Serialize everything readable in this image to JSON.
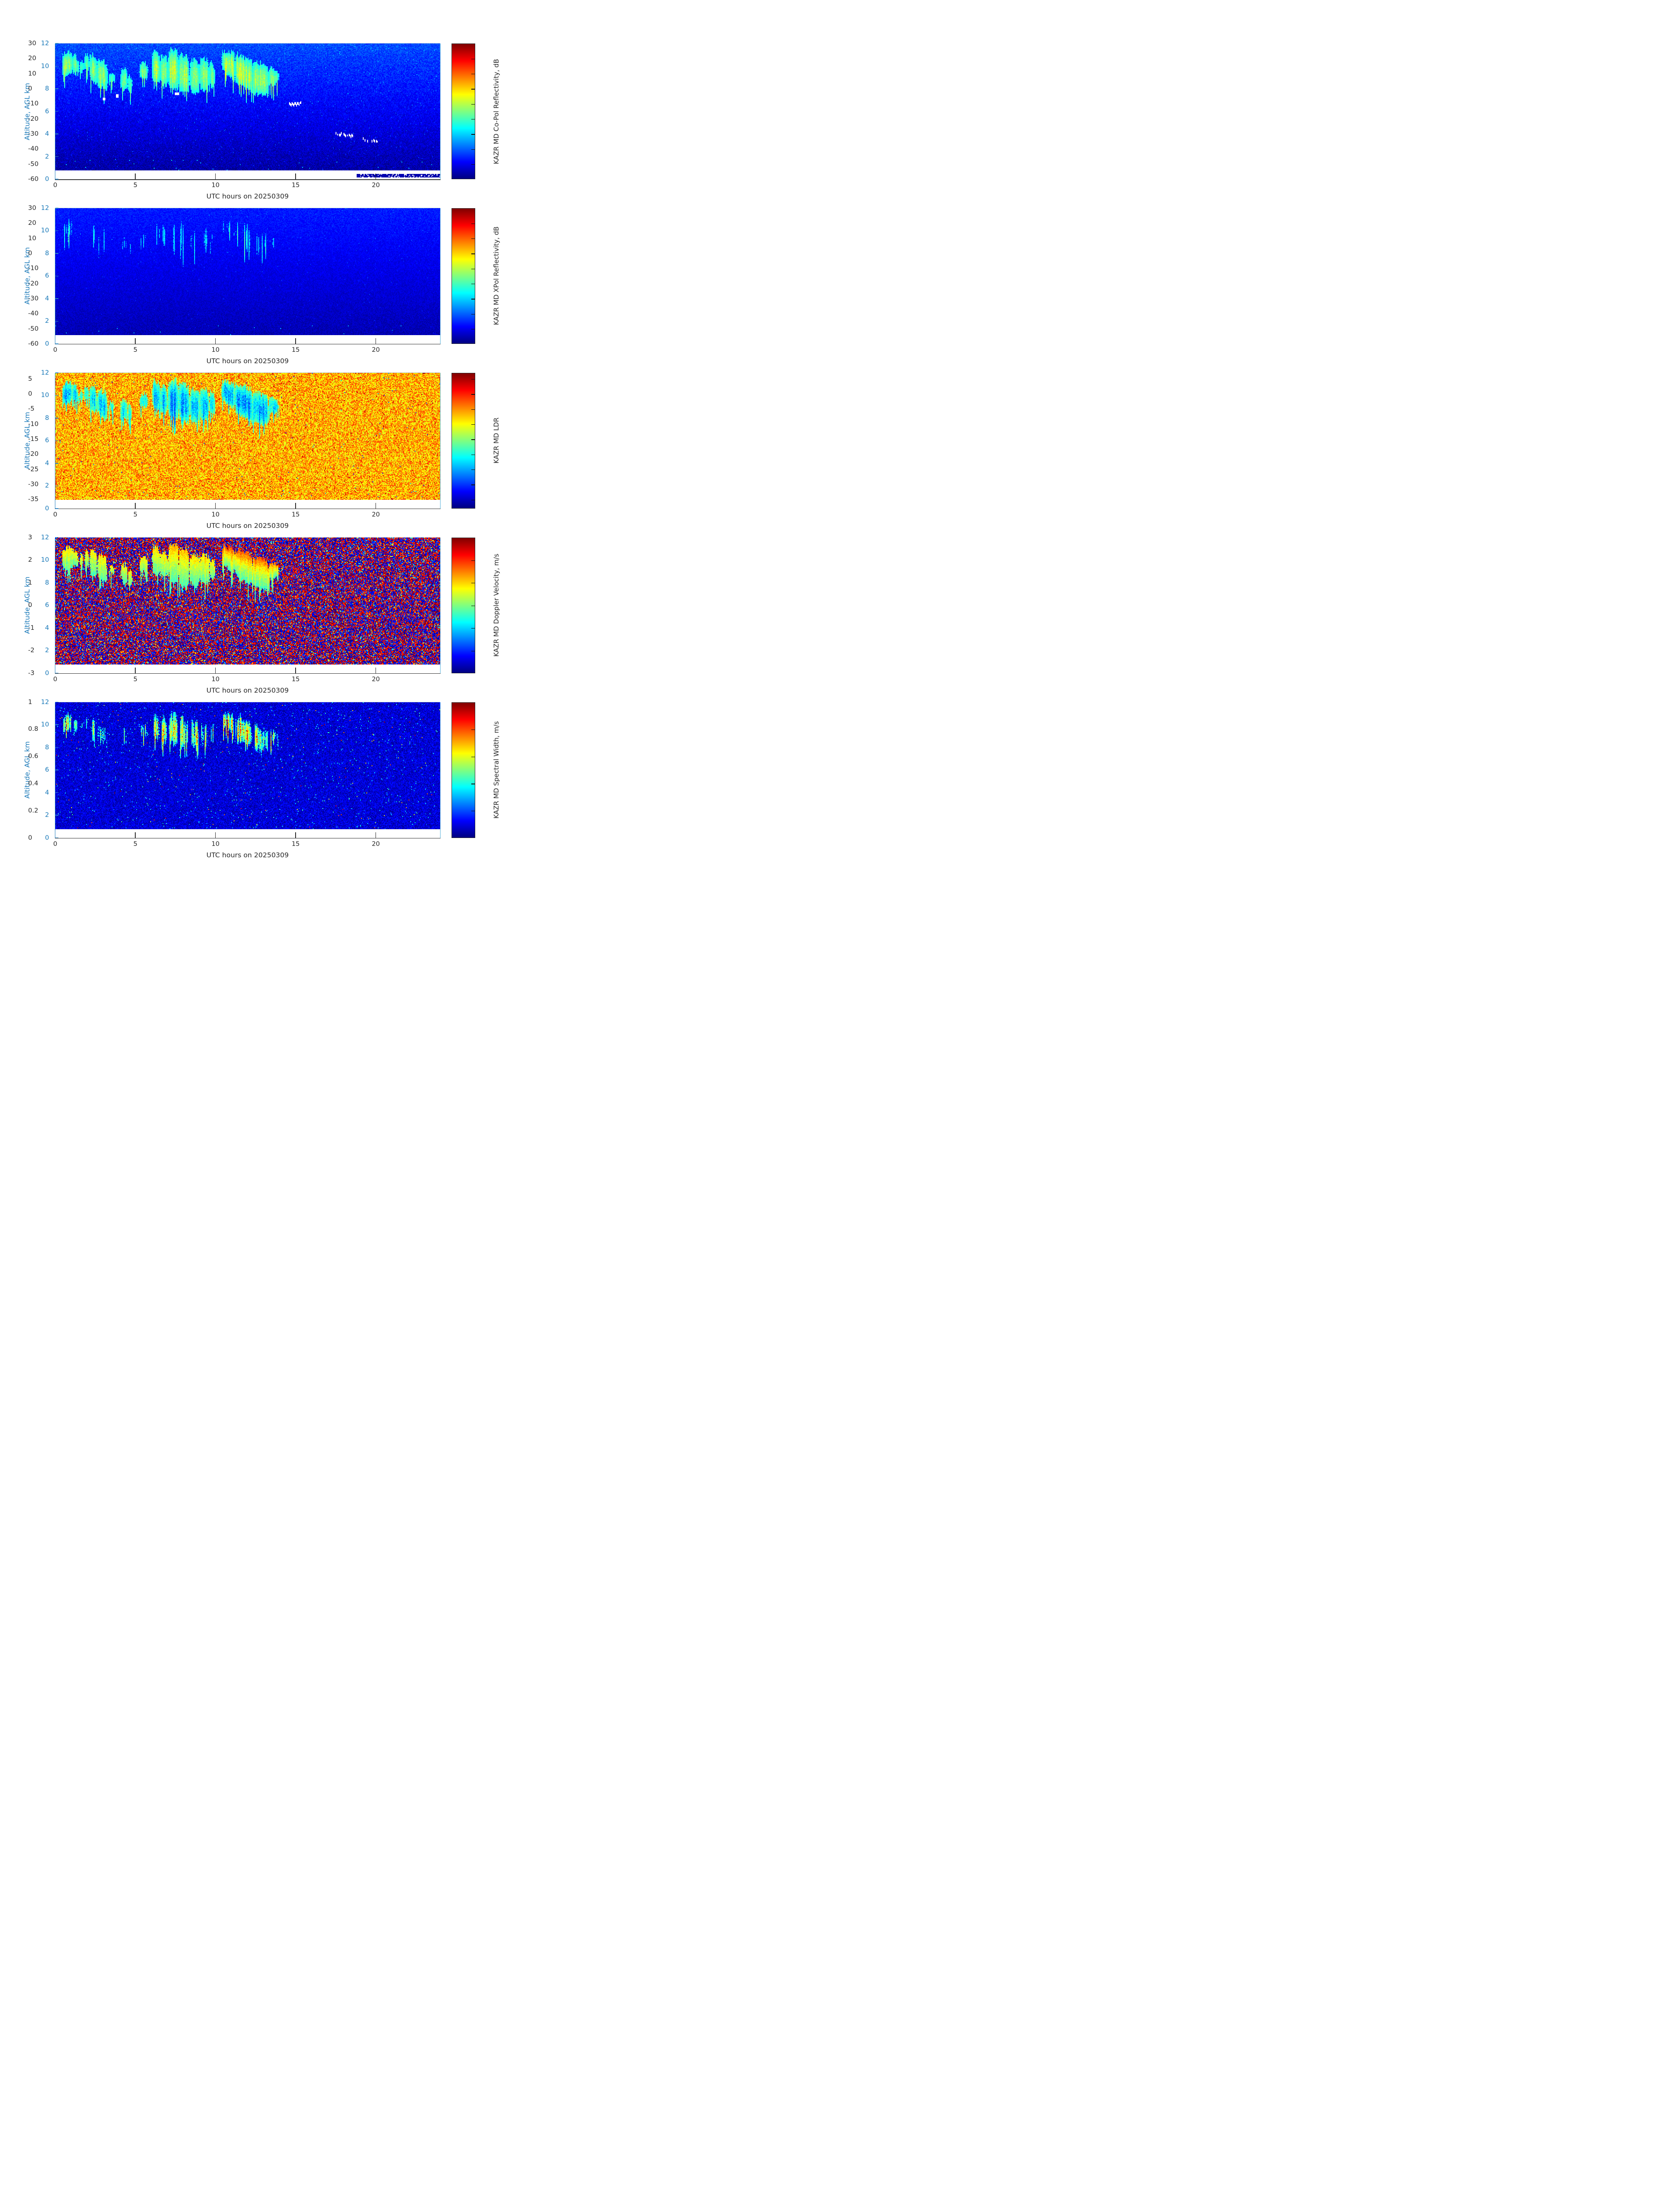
{
  "figure": {
    "background": "#ffffff",
    "axis_colors": {
      "y_axis": "#1878b8",
      "x_axis": "#262626"
    },
    "colormap": "jet",
    "colormap_stops": [
      [
        0,
        "#000080"
      ],
      [
        0.125,
        "#0000ff"
      ],
      [
        0.375,
        "#00ffff"
      ],
      [
        0.625,
        "#ffff00"
      ],
      [
        0.875,
        "#ff0000"
      ],
      [
        1,
        "#800000"
      ]
    ]
  },
  "cloud_plumes": [
    [
      0.45,
      1.05,
      11.2,
      11.4,
      9.0,
      9.2,
      0.95,
      0
    ],
    [
      1.05,
      1.45,
      11.5,
      10.6,
      9.3,
      9.2,
      0.75,
      0
    ],
    [
      1.5,
      1.78,
      10.6,
      10.7,
      9.4,
      9.4,
      0.55,
      0
    ],
    [
      1.8,
      2.12,
      11.3,
      10.9,
      9.6,
      9.4,
      0.6,
      0
    ],
    [
      2.15,
      2.6,
      11.4,
      10.8,
      8.6,
      8.2,
      0.8,
      0
    ],
    [
      2.6,
      3.25,
      10.9,
      10.5,
      8.2,
      7.6,
      0.75,
      0
    ],
    [
      3.35,
      3.72,
      9.7,
      9.5,
      8.7,
      8.5,
      0.5,
      0
    ],
    [
      4.08,
      4.5,
      10.0,
      9.9,
      8.0,
      7.6,
      0.65,
      0
    ],
    [
      4.5,
      4.82,
      9.5,
      9.3,
      7.7,
      7.5,
      0.5,
      0
    ],
    [
      5.25,
      5.78,
      10.3,
      10.4,
      8.8,
      8.8,
      0.65,
      0
    ],
    [
      6.05,
      6.55,
      11.6,
      11.2,
      8.6,
      8.3,
      0.9,
      0.2
    ],
    [
      6.55,
      7.0,
      11.2,
      10.9,
      8.3,
      8.1,
      0.8,
      0.2
    ],
    [
      7.05,
      7.7,
      11.7,
      11.6,
      8.0,
      7.6,
      1.0,
      0.35
    ],
    [
      7.7,
      8.35,
      11.6,
      11.0,
      7.5,
      7.4,
      0.95,
      0.35
    ],
    [
      8.4,
      9.0,
      10.9,
      10.7,
      7.6,
      7.3,
      0.85,
      0.2
    ],
    [
      9.0,
      9.6,
      10.9,
      10.8,
      7.8,
      7.6,
      0.8,
      0.2
    ],
    [
      9.6,
      9.97,
      10.8,
      10.2,
      8.2,
      8.0,
      0.7,
      0.2
    ],
    [
      10.4,
      11.2,
      11.5,
      11.3,
      9.6,
      8.6,
      0.95,
      1.0
    ],
    [
      11.2,
      12.3,
      11.3,
      10.7,
      8.4,
      7.6,
      1.0,
      1.0
    ],
    [
      12.3,
      13.3,
      10.7,
      10.1,
      7.5,
      7.1,
      0.9,
      0.9
    ],
    [
      13.3,
      13.95,
      10.1,
      9.6,
      8.0,
      8.6,
      0.7,
      0.7
    ]
  ],
  "point_targets": {
    "tracks": [
      [
        14.55,
        15.35,
        6.6,
        6.7
      ],
      [
        17.5,
        18.62,
        4.0,
        3.8
      ],
      [
        19.2,
        20.1,
        3.5,
        3.3
      ]
    ],
    "dots": [
      [
        3.05,
        7.1
      ],
      [
        3.85,
        7.35
      ],
      [
        7.5,
        7.55
      ],
      [
        7.65,
        7.55
      ]
    ]
  },
  "chart_data": [
    {
      "panel_index": 1,
      "type": "heatmap",
      "colorbar_label": "KAZR MD Co-Pol Reflectivity, dB",
      "clim": [
        -60,
        30
      ],
      "colorbar_ticks": [
        30,
        20,
        10,
        0,
        -10,
        -20,
        -30,
        -40,
        -50,
        -60
      ],
      "xlabel": "UTC hours on 20250309",
      "ylabel": "Altitude, AGL km",
      "xlim": [
        0,
        24
      ],
      "ylim": [
        0,
        12
      ],
      "x_ticks": [
        0,
        5,
        10,
        15,
        20
      ],
      "y_ticks": [
        0,
        2,
        4,
        6,
        8,
        10,
        12
      ],
      "data_floor_km": 0.8,
      "description": "Co-polar reflectivity: cirrus echoes (-30 to -5 dB, cyan-yellow) between ~7 and 12 km from 0 to ~14 UTC over a blue speckled noise floor (~-42 dB aloft to ~-56 dB near surface); white point-target tracks near 6.6 km (14.5-15.4 h), 3.9 km (17.5-18.6 h), 3.4 km (19.2-20.1 h); dark clutter dots along the surface after ~19 h.",
      "render": {
        "seed": 11,
        "background": {
          "mode": "blue-gradient",
          "v_top": -42,
          "v_bottom": -56.5,
          "noise": 7,
          "pop_rate": 0.02,
          "pop_gain": 7,
          "dots": {
            "rate": 0.005,
            "alt_max": 1.8,
            "value": -31,
            "spread": 8
          }
        },
        "cloud": {
          "mode": "reflectivity",
          "base": -29,
          "gain": 26,
          "noise": 5,
          "threshold": 0.1
        },
        "extras": {
          "white_targets": true,
          "bottom_clutter": {
            "t_min": 18.8,
            "alt_lo": 0.12,
            "alt_hi": 0.45,
            "value": -57.5
          }
        }
      }
    },
    {
      "panel_index": 2,
      "type": "heatmap",
      "colorbar_label": "KAZR MD XPol Reflectivity, dB",
      "clim": [
        -60,
        30
      ],
      "colorbar_ticks": [
        30,
        20,
        10,
        0,
        -10,
        -20,
        -30,
        -40,
        -50,
        -60
      ],
      "xlabel": "UTC hours on 20250309",
      "ylabel": "Altitude, AGL km",
      "xlim": [
        0,
        24
      ],
      "ylim": [
        0,
        12
      ],
      "x_ticks": [
        0,
        5,
        10,
        15,
        20
      ],
      "y_ticks": [
        0,
        2,
        4,
        6,
        8,
        10,
        12
      ],
      "data_floor_km": 0.8,
      "description": "Cross-polar reflectivity: only faint cyan fall-streak filaments (~-30 dB) inside the same cloud regions (0-14 UTC, 7-12 km) over a smooth blue noise gradient (-46 dB aloft to -55 dB near surface).",
      "render": {
        "seed": 29,
        "background": {
          "mode": "blue-gradient",
          "v_top": -46.5,
          "v_bottom": -55.5,
          "noise": 5,
          "pop_rate": 0.01,
          "pop_gain": 5,
          "dots": {
            "rate": 0.003,
            "alt_max": 1.6,
            "value": -33,
            "spread": 7
          }
        },
        "cloud": {
          "mode": "streaks",
          "base": -35,
          "gain": 16,
          "noise": 3,
          "threshold": 0.3
        },
        "extras": {}
      }
    },
    {
      "panel_index": 3,
      "type": "heatmap",
      "colorbar_label": "KAZR MD LDR",
      "clim": [
        -38,
        7
      ],
      "colorbar_ticks": [
        5,
        0,
        -5,
        -10,
        -15,
        -20,
        -25,
        -30,
        -35
      ],
      "xlabel": "UTC hours on 20250309",
      "ylabel": "Altitude, AGL km",
      "xlim": [
        0,
        24
      ],
      "ylim": [
        0,
        12
      ],
      "x_ticks": [
        0,
        5,
        10,
        15,
        20
      ],
      "y_ticks": [
        0,
        2,
        4,
        6,
        8,
        10,
        12
      ],
      "data_floor_km": 0.8,
      "description": "Linear depolarization ratio: orange-yellow noise (~-12 to -1) everywhere; cloud echoes show low LDR (cyan-blue, ~-28 to -16) in the 0-14 UTC, 7-12 km cloud regions.",
      "render": {
        "seed": 47,
        "background": {
          "mode": "uniform",
          "center": -6.5,
          "spread": 11,
          "red_rate": 0.015,
          "red_base": 1,
          "red_spread": 5,
          "dark_rate": 0.003,
          "dark_value": -24,
          "dots": {
            "rate": 0.004,
            "alt_max": 1.6,
            "value": -22,
            "spread": 6
          }
        },
        "cloud": {
          "mode": "ldr",
          "base": -14.5,
          "gain": -13.5,
          "noise": 5,
          "threshold": 0.13
        },
        "extras": {}
      }
    },
    {
      "panel_index": 4,
      "type": "heatmap",
      "colorbar_label": "KAZR MD Doppler Velocity, m/s",
      "clim": [
        -3,
        3
      ],
      "colorbar_ticks": [
        3,
        2,
        1,
        0,
        -1,
        -2,
        -3
      ],
      "xlabel": "UTC hours on 20250309",
      "ylabel": "Altitude, AGL km",
      "xlim": [
        0,
        24
      ],
      "ylim": [
        0,
        12
      ],
      "x_ticks": [
        0,
        5,
        10,
        15,
        20
      ],
      "y_ticks": [
        0,
        2,
        4,
        6,
        8,
        10,
        12
      ],
      "data_floor_km": 0.8,
      "description": "Doppler velocity: dense aliased noise (dark red / dark blue speckle) everywhere; coherent cloud returns appear green-yellow (~-0.5 to +1 m/s), with orange-red tops (up to ~+2 m/s) in the 10-14 UTC cluster.",
      "render": {
        "seed": 73,
        "background": {
          "mode": "bimodal",
          "lo": [
            -3,
            -1.7
          ],
          "hi": [
            1.7,
            3
          ],
          "mid_rate": 0.08
        },
        "cloud": {
          "mode": "velocity",
          "v0": -0.5,
          "slope": 1.55,
          "noise": 0.55,
          "threshold": 0.15
        },
        "extras": {}
      }
    },
    {
      "panel_index": 5,
      "type": "heatmap",
      "colorbar_label": "KAZR MD Spectral Width, m/s",
      "clim": [
        0,
        1
      ],
      "colorbar_ticks": [
        1,
        0.8,
        0.6,
        0.4,
        0.2,
        0
      ],
      "xlabel": "UTC hours on 20250309",
      "ylabel": "Altitude, AGL km",
      "xlim": [
        0,
        24
      ],
      "ylim": [
        0,
        12
      ],
      "x_ticks": [
        0,
        5,
        10,
        15,
        20
      ],
      "y_ticks": [
        0,
        2,
        4,
        6,
        8,
        10,
        12
      ],
      "data_floor_km": 0.8,
      "description": "Spectral width: dark-blue background (~0.05-0.15 m/s) with sparse bright specks; thin cyan streaky filaments (~0.2-0.5 m/s) trace the 0-14 UTC cloud fall streaks.",
      "render": {
        "seed": 97,
        "background": {
          "mode": "dark",
          "base": 0.02,
          "spread": 0.13,
          "speck_rate": 0.018,
          "speck_base": 0.2,
          "speck_spread": 0.25,
          "hot_rate": 0.0025,
          "hot_base": 0.55,
          "hot_spread": 0.45
        },
        "cloud": {
          "mode": "width",
          "base": 0.07,
          "gain": 0.5,
          "noise": 0.12,
          "threshold": 0.26
        },
        "extras": {}
      }
    }
  ]
}
